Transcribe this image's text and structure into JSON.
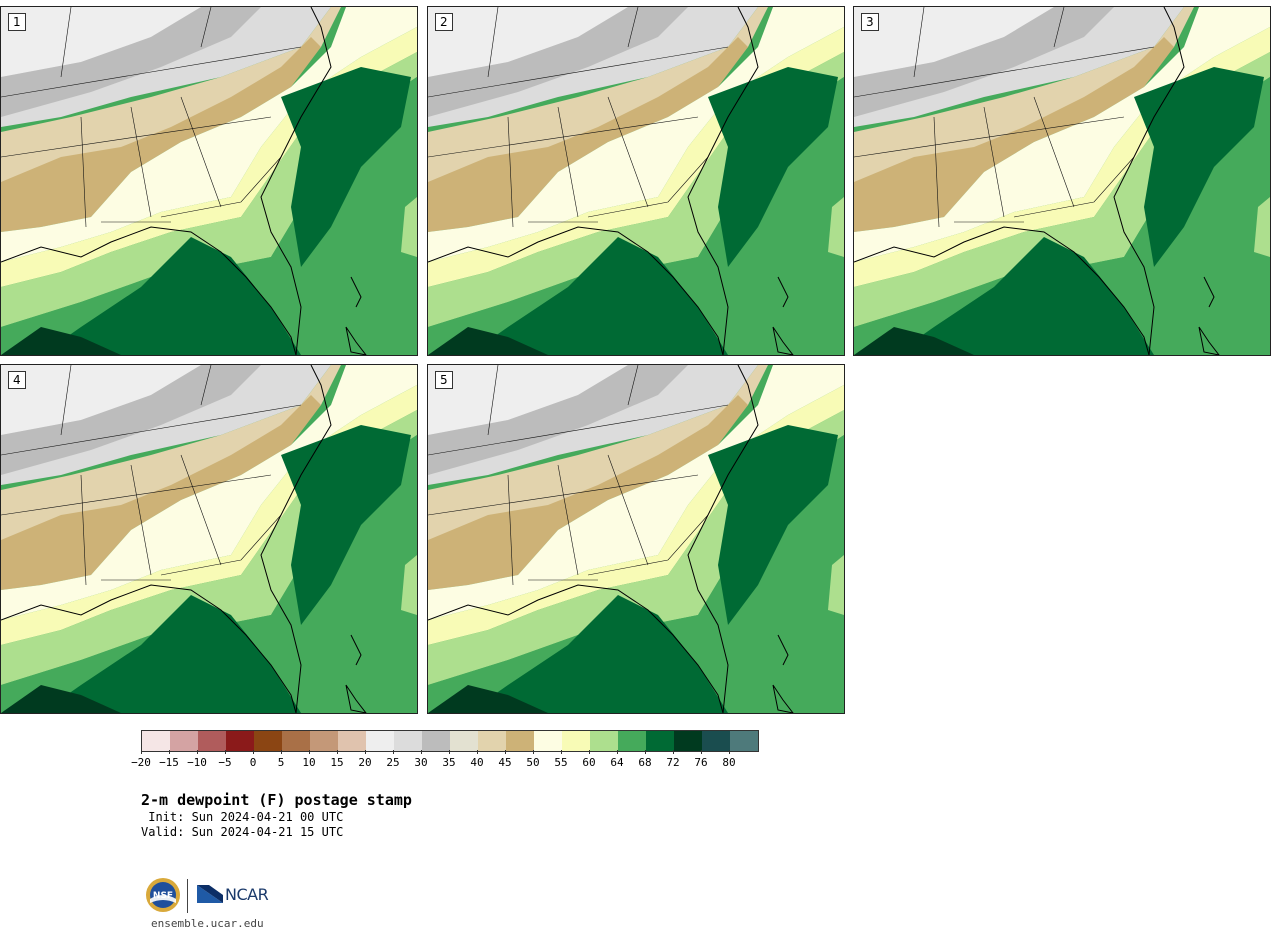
{
  "panels": [
    {
      "label": "1"
    },
    {
      "label": "2"
    },
    {
      "label": "3"
    },
    {
      "label": "4"
    },
    {
      "label": "5"
    }
  ],
  "colorbar": {
    "colors": [
      "#f5e6e6",
      "#d4a3a3",
      "#b05c5c",
      "#8b1a1a",
      "#8b4513",
      "#a97047",
      "#c49878",
      "#e0c3ae",
      "#eeeeee",
      "#dcdcdc",
      "#bcbcbc",
      "#e3e1d1",
      "#e2d3ad",
      "#cdb277",
      "#fdfde3",
      "#f8fbb6",
      "#addf8e",
      "#45aa5b",
      "#006a34",
      "#003a1f",
      "#1a4d4f",
      "#4e7a7b"
    ],
    "tick_labels": [
      "−20",
      "−15",
      "−10",
      "−5",
      "0",
      "5",
      "10",
      "15",
      "20",
      "25",
      "30",
      "35",
      "40",
      "45",
      "50",
      "55",
      "60",
      "64",
      "68",
      "72",
      "76",
      "80"
    ]
  },
  "title": "2-m dewpoint (F) postage stamp",
  "init": " Init: Sun 2024-04-21 00 UTC",
  "valid": "Valid: Sun 2024-04-21 15 UTC",
  "logos": {
    "nsf_text": "NSF",
    "ncar_text": "NCAR"
  },
  "site": "ensemble.ucar.edu"
}
